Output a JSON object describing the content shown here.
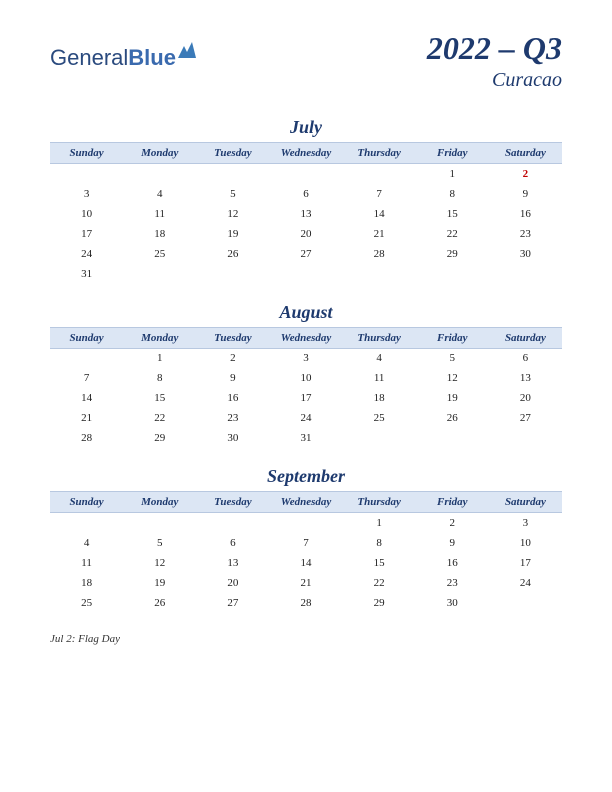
{
  "logo": {
    "text1": "General",
    "text2": "Blue"
  },
  "title": "2022 – Q3",
  "subtitle": "Curacao",
  "day_headers": [
    "Sunday",
    "Monday",
    "Tuesday",
    "Wednesday",
    "Thursday",
    "Friday",
    "Saturday"
  ],
  "colors": {
    "header_bg": "#dce6f4",
    "header_border": "#b8c8e0",
    "title_color": "#1e3a6e",
    "holiday_color": "#c00000",
    "text_color": "#222222",
    "background": "#ffffff"
  },
  "months": [
    {
      "name": "July",
      "rows": [
        [
          "",
          "",
          "",
          "",
          "",
          "1",
          "2"
        ],
        [
          "3",
          "4",
          "5",
          "6",
          "7",
          "8",
          "9"
        ],
        [
          "10",
          "11",
          "12",
          "13",
          "14",
          "15",
          "16"
        ],
        [
          "17",
          "18",
          "19",
          "20",
          "21",
          "22",
          "23"
        ],
        [
          "24",
          "25",
          "26",
          "27",
          "28",
          "29",
          "30"
        ],
        [
          "31",
          "",
          "",
          "",
          "",
          "",
          ""
        ]
      ],
      "holidays": [
        [
          0,
          6
        ]
      ]
    },
    {
      "name": "August",
      "rows": [
        [
          "",
          "1",
          "2",
          "3",
          "4",
          "5",
          "6"
        ],
        [
          "7",
          "8",
          "9",
          "10",
          "11",
          "12",
          "13"
        ],
        [
          "14",
          "15",
          "16",
          "17",
          "18",
          "19",
          "20"
        ],
        [
          "21",
          "22",
          "23",
          "24",
          "25",
          "26",
          "27"
        ],
        [
          "28",
          "29",
          "30",
          "31",
          "",
          "",
          ""
        ]
      ],
      "holidays": []
    },
    {
      "name": "September",
      "rows": [
        [
          "",
          "",
          "",
          "",
          "1",
          "2",
          "3"
        ],
        [
          "4",
          "5",
          "6",
          "7",
          "8",
          "9",
          "10"
        ],
        [
          "11",
          "12",
          "13",
          "14",
          "15",
          "16",
          "17"
        ],
        [
          "18",
          "19",
          "20",
          "21",
          "22",
          "23",
          "24"
        ],
        [
          "25",
          "26",
          "27",
          "28",
          "29",
          "30",
          ""
        ]
      ],
      "holidays": []
    }
  ],
  "footnote": "Jul 2: Flag Day"
}
